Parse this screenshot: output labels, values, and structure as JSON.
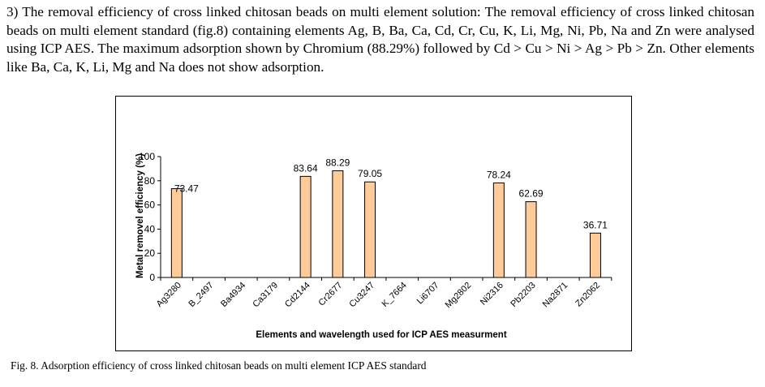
{
  "paragraph": "3) The removal efficiency of cross linked chitosan beads on multi element solution: The removal efficiency of cross linked chitosan beads on multi element standard (fig.8) containing elements Ag, B, Ba, Ca, Cd, Cr, Cu, K, Li, Mg, Ni, Pb, Na and Zn were analysed using ICP AES. The maximum adsorption shown by Chromium (88.29%) followed by Cd > Cu > Ni > Ag > Pb > Zn. Other elements like Ba, Ca, K, Li, Mg and Na does not show adsorption.",
  "caption": "Fig. 8. Adsorption efficiency of cross linked chitosan beads on multi element  ICP AES standard",
  "chart_data": {
    "type": "bar",
    "title": "",
    "xlabel": "Elements and wavelength used for ICP AES measurment",
    "ylabel": "Metal removel efficiency (%)",
    "ylim": [
      0,
      100
    ],
    "yticks": [
      0,
      20,
      40,
      60,
      80,
      100
    ],
    "categories": [
      "Ag3280",
      "B_2497",
      "Ba4934",
      "Ca3179",
      "Cd2144",
      "Cr2677",
      "Cu3247",
      "K_7664",
      "Li6707",
      "Mg2802",
      "Ni2316",
      "Pb2203",
      "Na2871",
      "Zn2062"
    ],
    "values": [
      73.47,
      0,
      0,
      0,
      83.64,
      88.29,
      79.05,
      0,
      0,
      0,
      78.24,
      62.69,
      0,
      36.71
    ],
    "data_labels": [
      "73.47",
      null,
      null,
      null,
      "83.64",
      "88.29",
      "79.05",
      null,
      null,
      null,
      "78.24",
      "62.69",
      null,
      "36.71"
    ],
    "bar_color": "#FFCC99",
    "legend": "none",
    "grid": false
  }
}
